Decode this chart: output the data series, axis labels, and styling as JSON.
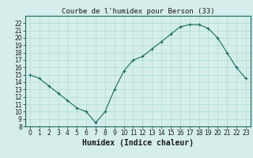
{
  "x": [
    0,
    1,
    2,
    3,
    4,
    5,
    6,
    7,
    8,
    9,
    10,
    11,
    12,
    13,
    14,
    15,
    16,
    17,
    18,
    19,
    20,
    21,
    22,
    23
  ],
  "y": [
    15.0,
    14.5,
    13.5,
    12.5,
    11.5,
    10.5,
    10.0,
    8.5,
    10.0,
    13.0,
    15.5,
    17.0,
    17.5,
    18.5,
    19.5,
    20.5,
    21.5,
    21.8,
    21.8,
    21.3,
    20.0,
    18.0,
    16.0,
    14.5
  ],
  "title": "Courbe de l'humidex pour Berson (33)",
  "xlabel": "Humidex (Indice chaleur)",
  "ylabel": "",
  "line_color": "#1a6b5a",
  "marker": "+",
  "bg_color": "#d5eeeb",
  "grid_color": "#aaddcc",
  "xlim": [
    -0.5,
    23.5
  ],
  "ylim": [
    8,
    23
  ],
  "yticks": [
    8,
    9,
    10,
    11,
    12,
    13,
    14,
    15,
    16,
    17,
    18,
    19,
    20,
    21,
    22
  ],
  "xticks": [
    0,
    1,
    2,
    3,
    4,
    5,
    6,
    7,
    8,
    9,
    10,
    11,
    12,
    13,
    14,
    15,
    16,
    17,
    18,
    19,
    20,
    21,
    22,
    23
  ],
  "tick_labelsize": 5.5,
  "xlabel_fontsize": 7,
  "title_fontsize": 6.5
}
